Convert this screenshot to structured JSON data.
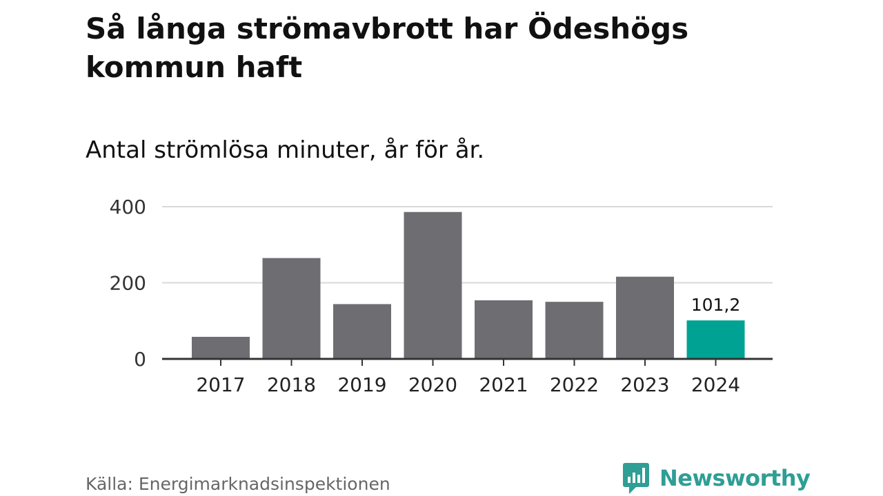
{
  "title": "Så långa strömavbrott har Ödeshögs kommun haft",
  "subtitle": "Antal strömlösa minuter, år för år.",
  "source": "Källa: Energimarknadsinspektionen",
  "brand": {
    "name": "Newsworthy",
    "color": "#2f9e95",
    "icon": "newsworthy-logo-icon"
  },
  "colors": {
    "bar": "#6e6d72",
    "highlight": "#00a294",
    "grid": "#d9d9d9",
    "axis": "#333333"
  },
  "chart_data": {
    "type": "bar",
    "categories": [
      "2017",
      "2018",
      "2019",
      "2020",
      "2021",
      "2022",
      "2023",
      "2024"
    ],
    "values": [
      58,
      265,
      144,
      386,
      154,
      150,
      216,
      101.2
    ],
    "highlight_index": 7,
    "data_labels": [
      {
        "index": 7,
        "text": "101,2"
      }
    ],
    "yticks": [
      0,
      200,
      400
    ],
    "ytick_labels": [
      "0",
      "200",
      "400"
    ],
    "ylim": [
      0,
      400
    ],
    "grid": true,
    "xlabel": "",
    "ylabel": ""
  }
}
